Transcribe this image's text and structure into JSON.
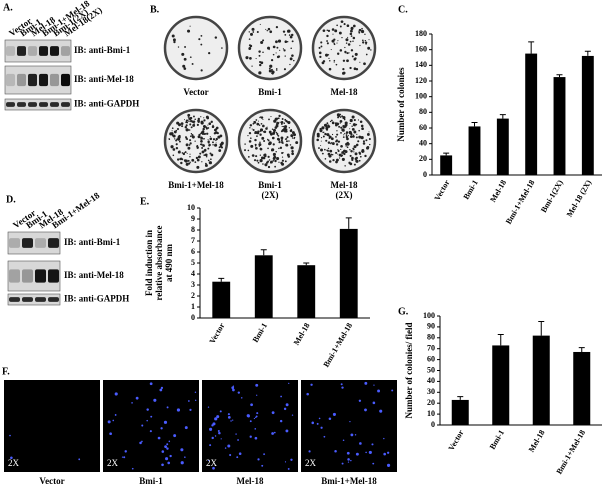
{
  "panel_a": {
    "label": "A.",
    "lanes": [
      "Vector",
      "Bmi-1",
      "Mel-18",
      "Bmi-1+Mel-18",
      "Bmi-1(2X)",
      "Mel-18(2X)"
    ],
    "blots": [
      "IB: anti-Bmi-1",
      "IB: anti-Mel-18",
      "IB: anti-GAPDH"
    ]
  },
  "panel_b": {
    "label": "B.",
    "plates": [
      [
        "Vector"
      ],
      [
        "Bmi-1"
      ],
      [
        "Mel-18"
      ],
      [
        "Bmi-1+Mel-18"
      ],
      [
        "Bmi-1",
        "(2X)"
      ],
      [
        "Mel-18",
        "(2X)"
      ]
    ]
  },
  "panel_d": {
    "label": "D.",
    "lanes": [
      "Vector",
      "Bmi-1",
      "Mel-18",
      "Bmi-1+Mel-18"
    ],
    "blots": [
      "IB: anti-Bmi-1",
      "IB: anti-Mel-18",
      "IB: anti-GAPDH"
    ]
  },
  "panel_f": {
    "label": "F.",
    "magnification": "2X",
    "images": [
      "Vector",
      "Bmi-1",
      "Mel-18",
      "Bmi-1+Mel-18"
    ]
  },
  "chart_data": [
    {
      "type": "bar",
      "panel": "C.",
      "ylabel": [
        "Number of colonies"
      ],
      "categories": [
        "Vector",
        "Bmi-1",
        "Mel-18",
        "Bmi-1+Mel-18",
        "Bmi-1(2X)",
        "Mel-18 (2X)"
      ],
      "values": [
        25,
        62,
        72,
        155,
        125,
        152
      ],
      "errors": [
        3,
        5,
        5,
        15,
        3,
        6
      ],
      "color": "#000000",
      "ylim": [
        0,
        180
      ],
      "yticks": [
        0,
        20,
        40,
        60,
        80,
        100,
        120,
        140,
        160,
        180
      ]
    },
    {
      "type": "bar",
      "panel": "E.",
      "ylabel": [
        "Fold induction in",
        "relative absorbance",
        "at 490 nm"
      ],
      "categories": [
        "Vector",
        "Bmi-1",
        "Mel-18",
        "Bmi-1+Mel-18"
      ],
      "values": [
        3.3,
        5.7,
        4.8,
        8.1
      ],
      "errors": [
        0.3,
        0.5,
        0.2,
        1.0
      ],
      "color": "#000000",
      "ylim": [
        0,
        10
      ],
      "yticks": [
        0,
        1,
        2,
        3,
        4,
        5,
        6,
        7,
        8,
        9,
        10
      ]
    },
    {
      "type": "bar",
      "panel": "G.",
      "ylabel": [
        "Number of colonies/ field"
      ],
      "categories": [
        "Vector",
        "Bmi-1",
        "Mel-18",
        "Bmi-1+Mel-18"
      ],
      "values": [
        23,
        73,
        82,
        67
      ],
      "errors": [
        3,
        10,
        13,
        4
      ],
      "color": "#000000",
      "ylim": [
        0,
        100
      ],
      "yticks": [
        0,
        10,
        20,
        30,
        40,
        50,
        60,
        70,
        80,
        90,
        100
      ]
    }
  ]
}
